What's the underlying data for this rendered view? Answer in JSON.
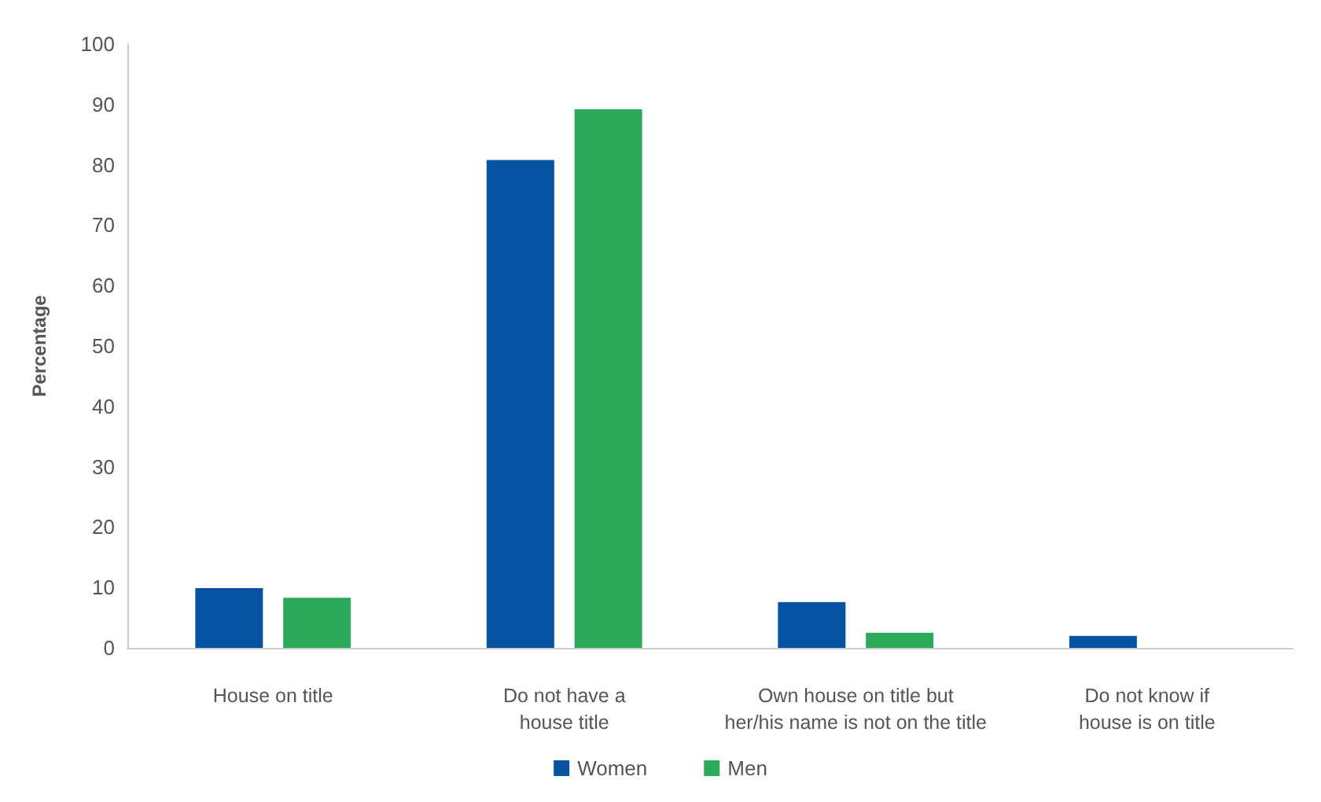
{
  "chart_data": {
    "type": "bar",
    "ylabel": "Percentage",
    "categories": [
      "House on title",
      "Do not have a\nhouse title",
      "Own house on title but\nher/his name is not on the title",
      "Do not know if\nhouse is on title"
    ],
    "series": [
      {
        "name": "Women",
        "color": "#0553a1",
        "values": [
          9.9,
          80.8,
          7.6,
          2.0
        ]
      },
      {
        "name": "Men",
        "color": "#2aaa5a",
        "values": [
          8.3,
          89.2,
          2.5,
          null
        ]
      }
    ],
    "ylim": [
      0,
      100
    ],
    "yticks": [
      0,
      10,
      20,
      30,
      40,
      50,
      60,
      70,
      80,
      90,
      100
    ],
    "grid": false,
    "legend": "bottom"
  }
}
